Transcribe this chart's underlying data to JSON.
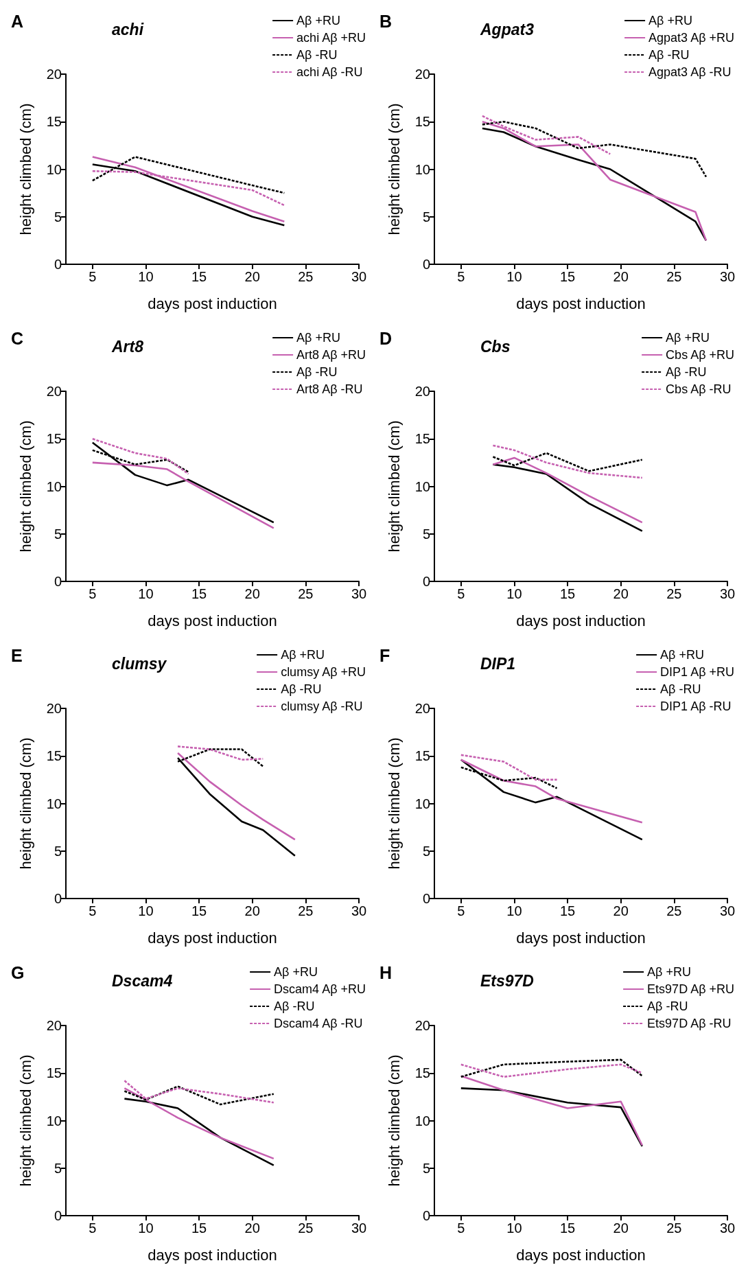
{
  "chart_data": [
    {
      "type": "line",
      "title": "achi",
      "annotations": [
        "A"
      ],
      "xlabel": "days post induction",
      "ylabel": "height climbed (cm)",
      "xlim": [
        2.5,
        30
      ],
      "ylim": [
        0,
        20
      ],
      "xticks": [
        5,
        10,
        15,
        20,
        25,
        30
      ],
      "yticks": [
        0,
        5,
        10,
        15,
        20
      ],
      "legend": "top right",
      "series": [
        {
          "name": "Aβ +RU",
          "color": "#000000",
          "line_style": "solid",
          "x": [
            5,
            9,
            20,
            23
          ],
          "values": [
            10.5,
            9.8,
            5,
            4.1
          ]
        },
        {
          "name": "achi Aβ +RU",
          "color": "#c660b0",
          "line_style": "solid",
          "x": [
            5,
            9,
            20,
            23
          ],
          "values": [
            11.3,
            10.2,
            5.6,
            4.5
          ]
        },
        {
          "name": "Aβ -RU",
          "color": "#000000",
          "line_style": "dashed",
          "x": [
            5,
            9,
            20,
            23
          ],
          "values": [
            8.8,
            11.3,
            8.3,
            7.5
          ]
        },
        {
          "name": "achi Aβ -RU",
          "color": "#c660b0",
          "line_style": "dashed",
          "x": [
            5,
            9,
            20,
            23
          ],
          "values": [
            9.8,
            9.7,
            7.8,
            6.2
          ]
        }
      ]
    },
    {
      "type": "line",
      "title": "Agpat3",
      "annotations": [
        "B"
      ],
      "xlabel": "days post induction",
      "ylabel": "height climbed (cm)",
      "xlim": [
        2.5,
        30
      ],
      "ylim": [
        0,
        20
      ],
      "xticks": [
        5,
        10,
        15,
        20,
        25,
        30
      ],
      "yticks": [
        0,
        5,
        10,
        15,
        20
      ],
      "legend": "top right",
      "series": [
        {
          "name": "Aβ +RU",
          "color": "#000000",
          "line_style": "solid",
          "x": [
            7,
            9,
            12,
            16,
            19,
            27,
            28
          ],
          "values": [
            14.3,
            13.9,
            12.4,
            11,
            10,
            4.5,
            2.5
          ]
        },
        {
          "name": "Agpat3 Aβ +RU",
          "color": "#c660b0",
          "line_style": "solid",
          "x": [
            7,
            9,
            12,
            16,
            19,
            27,
            28
          ],
          "values": [
            15,
            14.3,
            12.4,
            12.6,
            8.9,
            5.5,
            2.5
          ]
        },
        {
          "name": "Aβ -RU",
          "color": "#000000",
          "line_style": "dashed",
          "x": [
            7,
            9,
            12,
            16,
            19,
            27,
            28
          ],
          "values": [
            14.7,
            15,
            14.3,
            12.2,
            12.6,
            11.1,
            9.2
          ]
        },
        {
          "name": "Agpat3 Aβ -RU",
          "color": "#c660b0",
          "line_style": "dashed",
          "x": [
            7,
            9,
            12,
            16,
            19
          ],
          "values": [
            15.6,
            14.5,
            13.1,
            13.4,
            11.6
          ]
        }
      ]
    },
    {
      "type": "line",
      "title": "Art8",
      "annotations": [
        "C"
      ],
      "xlabel": "days post induction",
      "ylabel": "height climbed (cm)",
      "xlim": [
        2.5,
        30
      ],
      "ylim": [
        0,
        20
      ],
      "xticks": [
        5,
        10,
        15,
        20,
        25,
        30
      ],
      "yticks": [
        0,
        5,
        10,
        15,
        20
      ],
      "legend": "top right",
      "series": [
        {
          "name": "Aβ +RU",
          "color": "#000000",
          "line_style": "solid",
          "x": [
            5,
            9,
            12,
            14,
            22
          ],
          "values": [
            14.6,
            11.2,
            10.1,
            10.7,
            6.2
          ]
        },
        {
          "name": "Art8 Aβ +RU",
          "color": "#c660b0",
          "line_style": "solid",
          "x": [
            5,
            9,
            12,
            14,
            22
          ],
          "values": [
            12.5,
            12.2,
            11.8,
            10.5,
            5.6
          ]
        },
        {
          "name": "Aβ -RU",
          "color": "#000000",
          "line_style": "dashed",
          "x": [
            5,
            9,
            12,
            14
          ],
          "values": [
            13.8,
            12.3,
            12.8,
            11.5
          ]
        },
        {
          "name": "Art8 Aβ -RU",
          "color": "#c660b0",
          "line_style": "dashed",
          "x": [
            5,
            9,
            12,
            14
          ],
          "values": [
            15,
            13.5,
            12.9,
            11.3
          ]
        }
      ]
    },
    {
      "type": "line",
      "title": "Cbs",
      "annotations": [
        "D"
      ],
      "xlabel": "days post induction",
      "ylabel": "height climbed (cm)",
      "xlim": [
        2.5,
        30
      ],
      "ylim": [
        0,
        20
      ],
      "xticks": [
        5,
        10,
        15,
        20,
        25,
        30
      ],
      "yticks": [
        0,
        5,
        10,
        15,
        20
      ],
      "legend": "top right",
      "series": [
        {
          "name": "Aβ +RU",
          "color": "#000000",
          "line_style": "solid",
          "x": [
            8,
            10,
            13,
            17,
            22
          ],
          "values": [
            12.3,
            12,
            11.3,
            8.2,
            5.3
          ]
        },
        {
          "name": "Cbs Aβ +RU",
          "color": "#c660b0",
          "line_style": "solid",
          "x": [
            8,
            10,
            13,
            17,
            22
          ],
          "values": [
            12.3,
            13,
            11.4,
            9,
            6.2
          ]
        },
        {
          "name": "Aβ -RU",
          "color": "#000000",
          "line_style": "dashed",
          "x": [
            8,
            10,
            13,
            17,
            22
          ],
          "values": [
            13.1,
            12.2,
            13.5,
            11.6,
            12.8
          ]
        },
        {
          "name": "Cbs Aβ -RU",
          "color": "#c660b0",
          "line_style": "dashed",
          "x": [
            8,
            10,
            13,
            17,
            22
          ],
          "values": [
            14.3,
            13.8,
            12.5,
            11.4,
            10.9
          ]
        }
      ]
    },
    {
      "type": "line",
      "title": "clumsy",
      "annotations": [
        "E"
      ],
      "xlabel": "days post induction",
      "ylabel": "height climbed (cm)",
      "xlim": [
        2.5,
        30
      ],
      "ylim": [
        0,
        20
      ],
      "xticks": [
        5,
        10,
        15,
        20,
        25,
        30
      ],
      "yticks": [
        0,
        5,
        10,
        15,
        20
      ],
      "legend": "top right",
      "series": [
        {
          "name": "Aβ +RU",
          "color": "#000000",
          "line_style": "solid",
          "x": [
            13,
            16,
            19,
            21,
            24
          ],
          "values": [
            14.8,
            11,
            8.1,
            7.2,
            4.5
          ]
        },
        {
          "name": "clumsy Aβ +RU",
          "color": "#c660b0",
          "line_style": "solid",
          "x": [
            13,
            16,
            19,
            21,
            24
          ],
          "values": [
            15.3,
            12.3,
            9.8,
            8.3,
            6.2
          ]
        },
        {
          "name": "Aβ -RU",
          "color": "#000000",
          "line_style": "dashed",
          "x": [
            13,
            16,
            19,
            21
          ],
          "values": [
            14.4,
            15.7,
            15.7,
            13.9
          ]
        },
        {
          "name": "clumsy Aβ -RU",
          "color": "#c660b0",
          "line_style": "dashed",
          "x": [
            13,
            16,
            19,
            21
          ],
          "values": [
            16,
            15.7,
            14.6,
            14.7
          ]
        }
      ]
    },
    {
      "type": "line",
      "title": "DIP1",
      "annotations": [
        "F"
      ],
      "xlabel": "days post induction",
      "ylabel": "height climbed (cm)",
      "xlim": [
        2.5,
        30
      ],
      "ylim": [
        0,
        20
      ],
      "xticks": [
        5,
        10,
        15,
        20,
        25,
        30
      ],
      "yticks": [
        0,
        5,
        10,
        15,
        20
      ],
      "legend": "top right",
      "series": [
        {
          "name": "Aβ +RU",
          "color": "#000000",
          "line_style": "solid",
          "x": [
            5,
            9,
            12,
            14,
            22
          ],
          "values": [
            14.6,
            11.2,
            10.1,
            10.7,
            6.2
          ]
        },
        {
          "name": "DIP1 Aβ +RU",
          "color": "#c660b0",
          "line_style": "solid",
          "x": [
            5,
            9,
            12,
            14,
            22
          ],
          "values": [
            14.6,
            12.4,
            11.8,
            10.5,
            8
          ]
        },
        {
          "name": "Aβ -RU",
          "color": "#000000",
          "line_style": "dashed",
          "x": [
            5,
            9,
            12,
            14
          ],
          "values": [
            13.8,
            12.4,
            12.7,
            11.6
          ]
        },
        {
          "name": "DIP1 Aβ -RU",
          "color": "#c660b0",
          "line_style": "dashed",
          "x": [
            5,
            9,
            12,
            14
          ],
          "values": [
            15.1,
            14.4,
            12.5,
            12.5
          ]
        }
      ]
    },
    {
      "type": "line",
      "title": "Dscam4",
      "annotations": [
        "G"
      ],
      "xlabel": "days post induction",
      "ylabel": "height climbed (cm)",
      "xlim": [
        2.5,
        30
      ],
      "ylim": [
        0,
        20
      ],
      "xticks": [
        5,
        10,
        15,
        20,
        25,
        30
      ],
      "yticks": [
        0,
        5,
        10,
        15,
        20
      ],
      "legend": "top right",
      "series": [
        {
          "name": "Aβ +RU",
          "color": "#000000",
          "line_style": "solid",
          "x": [
            8,
            10,
            13,
            17,
            22
          ],
          "values": [
            12.3,
            12,
            11.3,
            8.2,
            5.3
          ]
        },
        {
          "name": "Dscam4 Aβ +RU",
          "color": "#c660b0",
          "line_style": "solid",
          "x": [
            8,
            10,
            13,
            17,
            22
          ],
          "values": [
            13.4,
            12.2,
            10.3,
            8.2,
            6
          ]
        },
        {
          "name": "Aβ -RU",
          "color": "#000000",
          "line_style": "dashed",
          "x": [
            8,
            10,
            13,
            17,
            22
          ],
          "values": [
            13.1,
            12.2,
            13.6,
            11.7,
            12.8
          ]
        },
        {
          "name": "Dscam4 Aβ -RU",
          "color": "#c660b0",
          "line_style": "dashed",
          "x": [
            8,
            10,
            13,
            17,
            22
          ],
          "values": [
            14.2,
            12.3,
            13.4,
            12.8,
            11.9
          ]
        }
      ]
    },
    {
      "type": "line",
      "title": "Ets97D",
      "annotations": [
        "H"
      ],
      "xlabel": "days post induction",
      "ylabel": "height climbed (cm)",
      "xlim": [
        2.5,
        30
      ],
      "ylim": [
        0,
        20
      ],
      "xticks": [
        5,
        10,
        15,
        20,
        25,
        30
      ],
      "yticks": [
        0,
        5,
        10,
        15,
        20
      ],
      "legend": "top right",
      "series": [
        {
          "name": "Aβ +RU",
          "color": "#000000",
          "line_style": "solid",
          "x": [
            5,
            9,
            15,
            20,
            22
          ],
          "values": [
            13.4,
            13.2,
            11.9,
            11.4,
            7.3
          ]
        },
        {
          "name": "Ets97D Aβ +RU",
          "color": "#c660b0",
          "line_style": "solid",
          "x": [
            5,
            9,
            15,
            20,
            22
          ],
          "values": [
            14.7,
            13.2,
            11.3,
            12,
            7.4
          ]
        },
        {
          "name": "Aβ -RU",
          "color": "#000000",
          "line_style": "dashed",
          "x": [
            5,
            9,
            15,
            20,
            22
          ],
          "values": [
            14.6,
            15.9,
            16.2,
            16.4,
            14.7
          ]
        },
        {
          "name": "Ets97D Aβ -RU",
          "color": "#c660b0",
          "line_style": "dashed",
          "x": [
            5,
            9,
            15,
            20,
            22
          ],
          "values": [
            15.9,
            14.6,
            15.4,
            15.9,
            15
          ]
        }
      ]
    }
  ]
}
